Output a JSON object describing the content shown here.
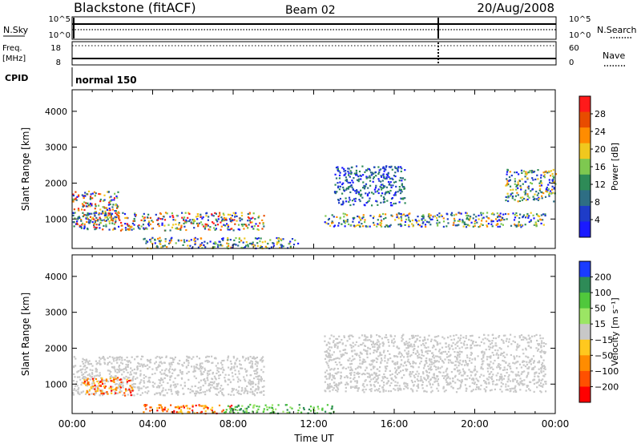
{
  "header": {
    "site": "Blackstone (fitACF)",
    "beam": "Beam 02",
    "date": "20/Aug/2008"
  },
  "param_panels": {
    "nsky": {
      "label": "N.Sky",
      "left_ticks": [
        "10^5",
        "10^0"
      ],
      "right_label": "N.Search",
      "right_ticks": [
        "10^5",
        "10^0"
      ]
    },
    "freq": {
      "label_line1": "Freq.",
      "label_line2": "[MHz]",
      "left_ticks": [
        "18",
        "8"
      ],
      "right_label": "Nave",
      "right_ticks": [
        "60",
        "0"
      ]
    },
    "cpid": {
      "label": "CPID",
      "value": "normal 150"
    }
  },
  "chart_data": [
    {
      "type": "heatmap",
      "title": "",
      "xlabel": "",
      "ylabel": "Slant Range [km]",
      "x_ticks": [
        "00:00",
        "04:00",
        "08:00",
        "12:00",
        "16:00",
        "20:00",
        "00:00"
      ],
      "y_ticks": [
        1000,
        2000,
        3000,
        4000
      ],
      "ylim": [
        180,
        4600
      ],
      "xlim_hours": [
        0,
        24
      ],
      "colorbar": {
        "label": "Power [dB]",
        "ticks": [
          4,
          8,
          12,
          16,
          20,
          24,
          28
        ],
        "range": [
          0,
          32
        ],
        "colors": [
          "#1a1aff",
          "#1e3cc8",
          "#2e6e84",
          "#2e8b57",
          "#7ec850",
          "#f0c81e",
          "#ff8c00",
          "#e84c00",
          "#ff1a1a"
        ]
      },
      "scatter_regions": [
        {
          "t": [
            0.0,
            2.3
          ],
          "r": [
            900,
            1800
          ],
          "level": "mid-high"
        },
        {
          "t": [
            0.0,
            9.5
          ],
          "r": [
            700,
            1200
          ],
          "level": "mid-high"
        },
        {
          "t": [
            3.5,
            11.2
          ],
          "r": [
            200,
            500
          ],
          "level": "low-mid"
        },
        {
          "t": [
            12.5,
            23.5
          ],
          "r": [
            800,
            1200
          ],
          "level": "low-mid"
        },
        {
          "t": [
            13.0,
            16.5
          ],
          "r": [
            1400,
            2500
          ],
          "level": "low"
        },
        {
          "t": [
            21.5,
            24.0
          ],
          "r": [
            1500,
            2400
          ],
          "level": "low-mid"
        }
      ]
    },
    {
      "type": "heatmap",
      "title": "",
      "xlabel": "Time UT",
      "ylabel": "Slant Range [km]",
      "x_ticks": [
        "00:00",
        "04:00",
        "08:00",
        "12:00",
        "16:00",
        "20:00",
        "00:00"
      ],
      "y_ticks": [
        1000,
        2000,
        3000,
        4000
      ],
      "ylim": [
        180,
        4600
      ],
      "xlim_hours": [
        0,
        24
      ],
      "colorbar": {
        "label": "Velocity [m s⁻¹]",
        "ticks": [
          200,
          100,
          50,
          15,
          -15,
          -50,
          -100,
          -200
        ],
        "colors": [
          "#1a3cff",
          "#2e8b57",
          "#50c83c",
          "#9be564",
          "#c8c8c8",
          "#ffc81e",
          "#ff8c00",
          "#ff5000",
          "#ff0000"
        ]
      },
      "scatter_regions": [
        {
          "t": [
            0.0,
            9.5
          ],
          "r": [
            700,
            1800
          ],
          "level": "ground-scatter"
        },
        {
          "t": [
            0.5,
            3.0
          ],
          "r": [
            700,
            1200
          ],
          "level": "negative"
        },
        {
          "t": [
            3.5,
            8.0
          ],
          "r": [
            200,
            450
          ],
          "level": "negative"
        },
        {
          "t": [
            7.5,
            13.0
          ],
          "r": [
            200,
            450
          ],
          "level": "positive"
        },
        {
          "t": [
            12.5,
            23.5
          ],
          "r": [
            800,
            2400
          ],
          "level": "ground-scatter"
        }
      ]
    }
  ]
}
